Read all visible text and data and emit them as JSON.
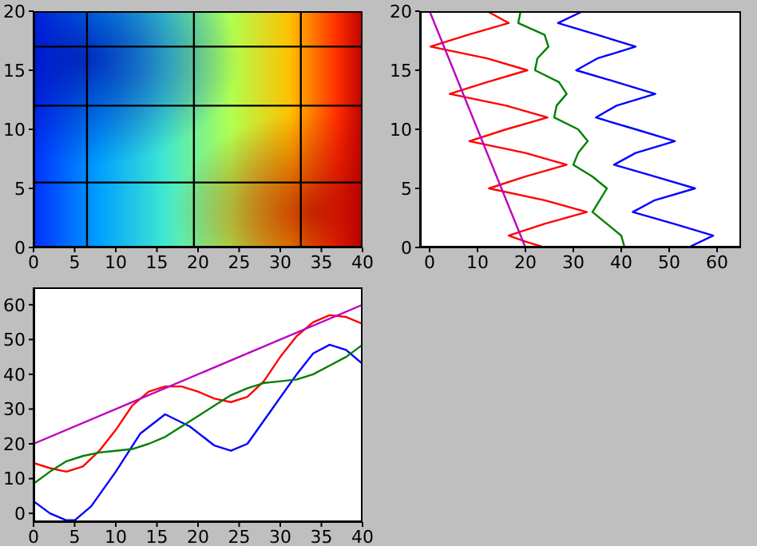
{
  "chart_data": [
    {
      "type": "heatmap",
      "xlim": [
        0,
        40
      ],
      "ylim": [
        0,
        20
      ],
      "xticks": [
        0,
        5,
        10,
        15,
        20,
        25,
        30,
        35,
        40
      ],
      "yticks": [
        0,
        5,
        10,
        15,
        20
      ],
      "ref_lines": [
        {
          "axis": "x",
          "value": 6.5,
          "color": "#000000"
        },
        {
          "axis": "x",
          "value": 19.5,
          "color": "#000000"
        },
        {
          "axis": "x",
          "value": 32.5,
          "color": "#000000"
        },
        {
          "axis": "y",
          "value": 5.5,
          "color": "#000000"
        },
        {
          "axis": "y",
          "value": 12,
          "color": "#000000"
        },
        {
          "axis": "y",
          "value": 17,
          "color": "#000000"
        }
      ]
    },
    {
      "type": "line",
      "xlim": [
        -2,
        65
      ],
      "ylim": [
        0,
        20
      ],
      "xticks": [
        0,
        10,
        20,
        30,
        40,
        50,
        60
      ],
      "yticks": [
        0,
        5,
        10,
        15,
        20
      ],
      "marker": "none",
      "series": [
        {
          "color": "#ff0000",
          "x": [
            24,
            20,
            16.5,
            24,
            32.8,
            24,
            12.4,
            20,
            28.6,
            20,
            8.3,
            16,
            24.6,
            16,
            4.2,
            12,
            20.4,
            12,
            0.2,
            8,
            16.5,
            12
          ],
          "values": [
            0,
            0.5,
            1,
            2,
            3,
            4,
            5,
            6,
            7,
            8,
            9,
            10,
            11,
            12,
            13,
            14,
            15,
            16,
            17,
            18,
            19,
            20
          ]
        },
        {
          "color": "#008000",
          "x": [
            40.7,
            40,
            37,
            34,
            35.5,
            37,
            34,
            30,
            31,
            33,
            31,
            26,
            26.5,
            28.6,
            27,
            22,
            22.5,
            24.8,
            24,
            18.5,
            19
          ],
          "values": [
            0,
            1,
            2,
            3,
            4,
            5,
            6,
            7,
            8,
            9,
            10,
            11,
            12,
            13,
            14,
            15,
            16,
            17,
            18,
            19,
            20
          ]
        },
        {
          "color": "#0000ff",
          "x": [
            54,
            59.2,
            51,
            42.4,
            47,
            55.4,
            47,
            38.5,
            43,
            51.2,
            43,
            34.7,
            39,
            47.1,
            39,
            30.6,
            35,
            43,
            35,
            26.8,
            32
          ],
          "values": [
            0,
            1,
            2,
            3,
            4,
            5,
            6,
            7,
            8,
            9,
            10,
            11,
            12,
            13,
            14,
            15,
            16,
            17,
            18,
            19,
            20
          ]
        },
        {
          "color": "#bf00bf",
          "x": [
            20,
            0
          ],
          "values": [
            0,
            20
          ]
        }
      ]
    },
    {
      "type": "line",
      "xlim": [
        0,
        40
      ],
      "ylim": [
        -2.5,
        65
      ],
      "xticks": [
        0,
        5,
        10,
        15,
        20,
        25,
        30,
        35,
        40
      ],
      "yticks": [
        0,
        10,
        20,
        30,
        40,
        50,
        60
      ],
      "marker": "none",
      "x": [
        0,
        2,
        4,
        5,
        7,
        10,
        13,
        16,
        19,
        22,
        24,
        26,
        29,
        32,
        34,
        36,
        38,
        40
      ],
      "series": [
        {
          "color": "#0000ff",
          "values": [
            3.5,
            0,
            -2,
            -2,
            2,
            12,
            23,
            28.5,
            25,
            19.5,
            18,
            20,
            30,
            40,
            46,
            48.5,
            47,
            43
          ]
        },
        {
          "color": "#ff0000",
          "x": [
            0,
            2,
            4,
            6,
            8,
            10,
            12,
            14,
            16,
            18,
            20,
            22,
            24,
            26,
            28,
            30,
            32,
            34,
            36,
            38,
            40
          ],
          "values": [
            14.5,
            13,
            12,
            13.5,
            18,
            24,
            31,
            35,
            36.5,
            36.5,
            35,
            33,
            32,
            33.5,
            38,
            45,
            51,
            55,
            57,
            56.5,
            54.5
          ]
        },
        {
          "color": "#008000",
          "x": [
            0,
            2,
            4,
            6,
            8,
            10,
            12,
            14,
            16,
            18,
            20,
            22,
            24,
            26,
            28,
            30,
            32,
            34,
            36,
            38,
            40
          ],
          "values": [
            8.5,
            12,
            15,
            16.5,
            17.5,
            18,
            18.5,
            20,
            22,
            25,
            28,
            31,
            34,
            36,
            37.5,
            38,
            38.5,
            40,
            42.5,
            45,
            48.5
          ]
        },
        {
          "color": "#bf00bf",
          "x": [
            0,
            40
          ],
          "values": [
            20,
            60
          ]
        }
      ]
    }
  ]
}
